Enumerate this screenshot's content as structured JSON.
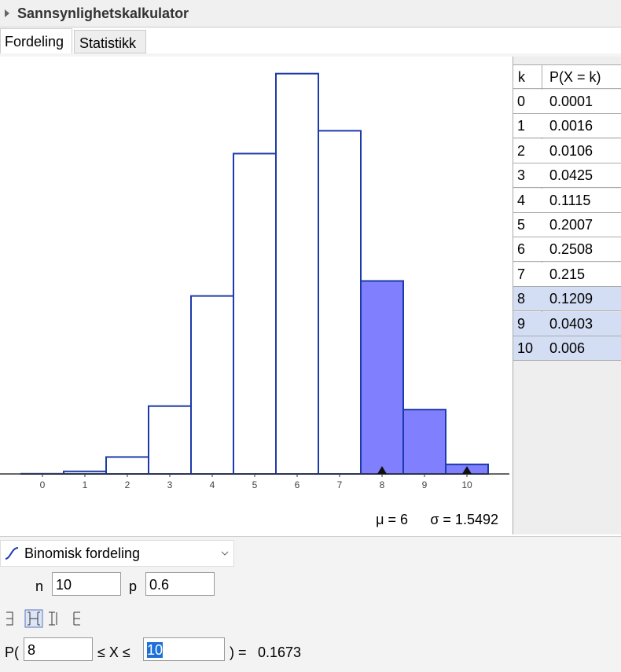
{
  "header": {
    "title": "Sannsynlighetskalkulator"
  },
  "tabs": [
    "Fordeling",
    "Statistikk"
  ],
  "chart_data": {
    "type": "bar",
    "categories": [
      0,
      1,
      2,
      3,
      4,
      5,
      6,
      7,
      8,
      9,
      10
    ],
    "values": [
      0.0001,
      0.0016,
      0.0106,
      0.0425,
      0.1115,
      0.2007,
      0.2508,
      0.215,
      0.1209,
      0.0403,
      0.006
    ],
    "xlim": [
      -1,
      11
    ],
    "ylim": [
      0,
      0.26
    ],
    "xticks": [
      0,
      1,
      2,
      3,
      4,
      5,
      6,
      7,
      8,
      9,
      10
    ],
    "color": "#ffffff",
    "selected_color": "#8080ff",
    "edge_color": "#1c3aa9",
    "mean_text": "μ = 6",
    "sd_text": "σ = 1.5492"
  },
  "table": {
    "header": [
      "k",
      "P(X = k)"
    ]
  },
  "controls": {
    "distribution": "Binomisk fordeling",
    "params": [
      {
        "label": "n",
        "value": 10
      },
      {
        "label": "p",
        "value": 0.6
      }
    ],
    "prob_open": "P(",
    "between": "≤ X ≤",
    "close": ") =",
    "low": 8,
    "high": 10,
    "result": 0.1673
  }
}
